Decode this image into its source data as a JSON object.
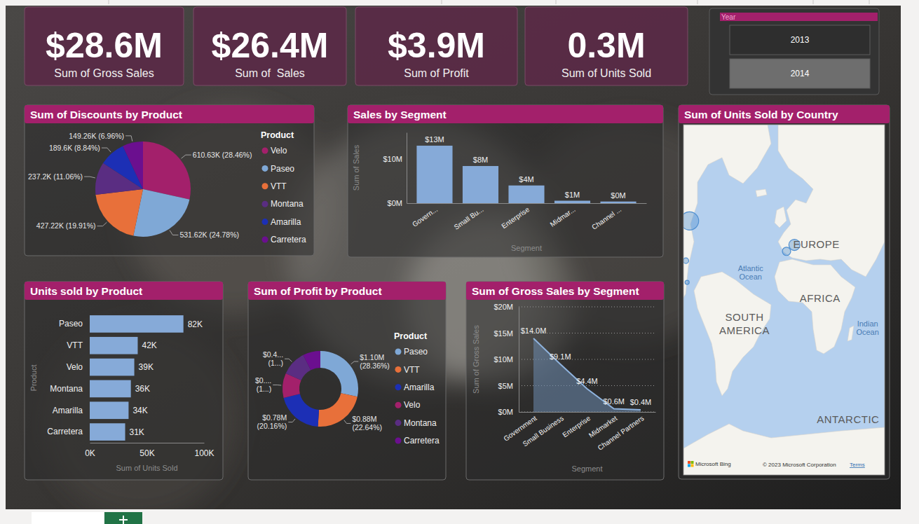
{
  "cards": [
    {
      "value": "$28.6M",
      "label": "Sum of Gross Sales"
    },
    {
      "value": "$26.4M",
      "label": "Sum of  Sales"
    },
    {
      "value": "$3.9M",
      "label": "Sum of Profit"
    },
    {
      "value": "0.3M",
      "label": "Sum of Units Sold"
    }
  ],
  "slicer": {
    "title": "Year",
    "items": [
      "2013",
      "2014"
    ],
    "selected_index": 1
  },
  "chart_data": [
    {
      "type": "pie",
      "title": "Sum of Discounts by Product",
      "legend_title": "Product",
      "legend": "right",
      "categories": [
        "Velo",
        "Paseo",
        "VTT",
        "Montana",
        "Amarilla",
        "Carretera"
      ],
      "values": [
        610630,
        531620,
        427220,
        237200,
        189600,
        149260
      ],
      "value_labels": [
        "610.63K (28.46%)",
        "531.62K (24.78%)",
        "427.22K (19.91%)",
        "237.2K (11.06%)",
        "189.6K (8.84%)",
        "149.26K (6.96%)"
      ],
      "colors": [
        "#a3206b",
        "#7fa8d6",
        "#e8703a",
        "#5a2d82",
        "#1c2fb5",
        "#6b0f8f"
      ],
      "data_labels": true
    },
    {
      "type": "bar",
      "title": "Sales by Segment",
      "x_label": "Segment",
      "y_label": "Sum of Sales",
      "categories": [
        "Govern...",
        "Small Bu...",
        "Enterprise",
        "Midmar...",
        "Channel ..."
      ],
      "values": [
        13000000,
        8400000,
        4000000,
        550000,
        370000
      ],
      "value_labels": [
        "$13M",
        "$8M",
        "$4M",
        "$1M",
        "$0M"
      ],
      "color": "#86aad8",
      "ylim": [
        0,
        16000000
      ],
      "yticks": [
        {
          "value": 0,
          "label": "$0M"
        },
        {
          "value": 10000000,
          "label": "$10M"
        }
      ],
      "grid": false,
      "data_labels": true
    },
    {
      "type": "bubble_map",
      "title": "Sum of Units Sold by Country",
      "x": [
        -75,
        -78,
        -77,
        11,
        4.5
      ],
      "values": [
        57,
        34.6,
        18.7,
        44.6,
        40.7
      ],
      "sizes": [
        152000,
        14000,
        8000,
        57000,
        32000
      ],
      "xlim": [
        -80,
        85
      ],
      "ylim": [
        -80,
        81.5
      ],
      "tick_labels": false,
      "color": "#4f8fd0",
      "annotations": [
        {
          "text": "EUROPE",
          "x": 29,
          "y": 45
        },
        {
          "text": "Atlantic Ocean",
          "x": -25,
          "y": 26
        },
        {
          "text": "AFRICA",
          "x": 32,
          "y": 6
        },
        {
          "text": "SOUTH AMERICA",
          "x": -30,
          "y": -15
        },
        {
          "text": "Indian Ocean",
          "x": 71,
          "y": -18
        },
        {
          "text": "ANTARCTIC",
          "x": 55,
          "y": -68
        }
      ],
      "attribution": [
        "Microsoft Bing",
        "© 2023 Microsoft Corporation",
        "Terms"
      ]
    },
    {
      "type": "bar",
      "orientation": "horizontal",
      "title": "Units sold by Product",
      "x_label": "Sum of Units Sold",
      "y_label": "Product",
      "categories": [
        "Paseo",
        "VTT",
        "Velo",
        "Montana",
        "Amarilla",
        "Carretera"
      ],
      "values": [
        82000,
        42000,
        39000,
        36000,
        34000,
        31000
      ],
      "value_labels": [
        "82K",
        "42K",
        "39K",
        "36K",
        "34K",
        "31K"
      ],
      "color": "#86aad8",
      "xlim": [
        0,
        100000
      ],
      "xticks": [
        {
          "value": 0,
          "label": "0K"
        },
        {
          "value": 50000,
          "label": "50K"
        },
        {
          "value": 100000,
          "label": "100K"
        }
      ],
      "data_labels": true
    },
    {
      "type": "donut",
      "title": "Sum of Profit by Product",
      "legend_title": "Product",
      "legend": "right",
      "categories": [
        "Paseo",
        "VTT",
        "Amarilla",
        "Velo",
        "Montana",
        "Carretera"
      ],
      "values": [
        1100000,
        880000,
        780000,
        410000,
        420000,
        290000
      ],
      "value_labels": [
        "$1.10M (28.36%)",
        "$0.88M (22.64%)",
        "$0.78M (20.16%)",
        "$0.... (1...)",
        "$0.4... (1...)",
        null
      ],
      "colors": [
        "#7fa8d6",
        "#e8703a",
        "#1c2fb5",
        "#a3206b",
        "#5a2d82",
        "#6b0f8f"
      ],
      "data_labels": true
    },
    {
      "type": "area",
      "title": "Sum of Gross Sales by Segment",
      "x_label": "Segment",
      "y_label": "Sum of Gross Sales",
      "categories": [
        "Government",
        "Small Business",
        "Enterprise",
        "Midmarket",
        "Channel Partners"
      ],
      "values": [
        14000000,
        9100000,
        4400000,
        600000,
        400000
      ],
      "value_labels": [
        "$14.0M",
        "$9.1M",
        "$4.4M",
        "$0.6M",
        "$0.4M"
      ],
      "color": "#8fb3de",
      "ylim": [
        0,
        20000000
      ],
      "yticks": [
        {
          "value": 0,
          "label": "$0M"
        },
        {
          "value": 5000000,
          "label": "$5M"
        },
        {
          "value": 10000000,
          "label": "$10M"
        },
        {
          "value": 15000000,
          "label": "$15M"
        },
        {
          "value": 20000000,
          "label": "$20M"
        }
      ],
      "grid": true,
      "data_labels": true
    }
  ]
}
